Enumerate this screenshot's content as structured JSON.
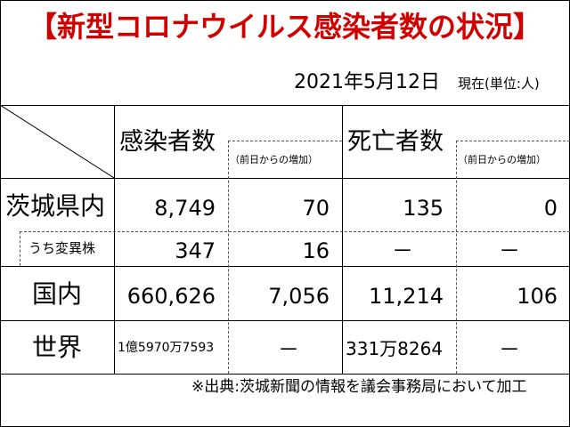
{
  "title": "【新型コロナウイルス感染者数の状況】",
  "date": "2021年5月12日",
  "unit_note": "現在(単位:人)",
  "headers": {
    "infected": "感染者数",
    "infected_change": "（前日からの増加）",
    "deaths": "死亡者数",
    "deaths_change": "（前日からの増加）"
  },
  "rows": [
    {
      "label": "茨城県内",
      "infected": "8,749",
      "infected_change": "70",
      "deaths": "135",
      "deaths_change": "0"
    },
    {
      "label": "うち変異株",
      "infected": "347",
      "infected_change": "16",
      "deaths": "－",
      "deaths_change": "－"
    },
    {
      "label": "国内",
      "infected": "660,626",
      "infected_change": "7,056",
      "deaths": "11,214",
      "deaths_change": "106"
    },
    {
      "label": "世界",
      "infected": "1億5970万7593",
      "infected_change": "－",
      "deaths": "331万8264",
      "deaths_change": "－"
    }
  ],
  "footer": "※出典:茨城新聞の情報を議会事務局において加工"
}
